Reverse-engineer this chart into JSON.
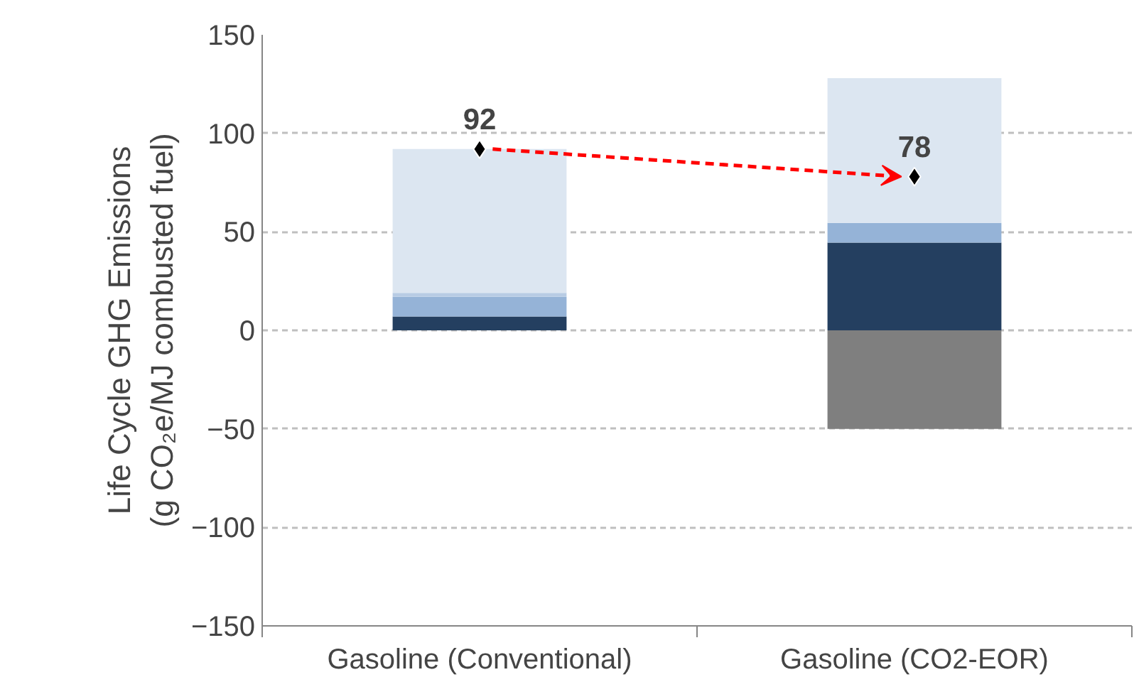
{
  "chart_data": {
    "type": "bar",
    "stacked": true,
    "ylabel": "Life Cycle GHG Emissions\n(g CO₂e/MJ combusted fuel)",
    "categories": [
      "Gasoline (Conventional)",
      "Gasoline (CO2-EOR)"
    ],
    "ylim": [
      -150,
      150
    ],
    "yticks": [
      -150,
      -100,
      -50,
      0,
      50,
      100,
      150
    ],
    "grid": "y",
    "series": [
      {
        "color": "#7f7f7f",
        "values": [
          0,
          -50
        ]
      },
      {
        "color": "#243f60",
        "values": [
          7,
          44.5
        ]
      },
      {
        "color": "#95b3d7",
        "values": [
          10,
          10
        ]
      },
      {
        "color": "#b8cce4",
        "values": [
          2,
          0
        ]
      },
      {
        "color": "#dce6f1",
        "values": [
          73,
          73.5
        ]
      },
      {
        "type": "scatter",
        "marker": "diamond",
        "color": "#000000",
        "x": [
          "Gasoline (Conventional)",
          "Gasoline (CO2-EOR)"
        ],
        "values": [
          92,
          78
        ],
        "value_labels": [
          "92",
          "78"
        ]
      }
    ]
  }
}
